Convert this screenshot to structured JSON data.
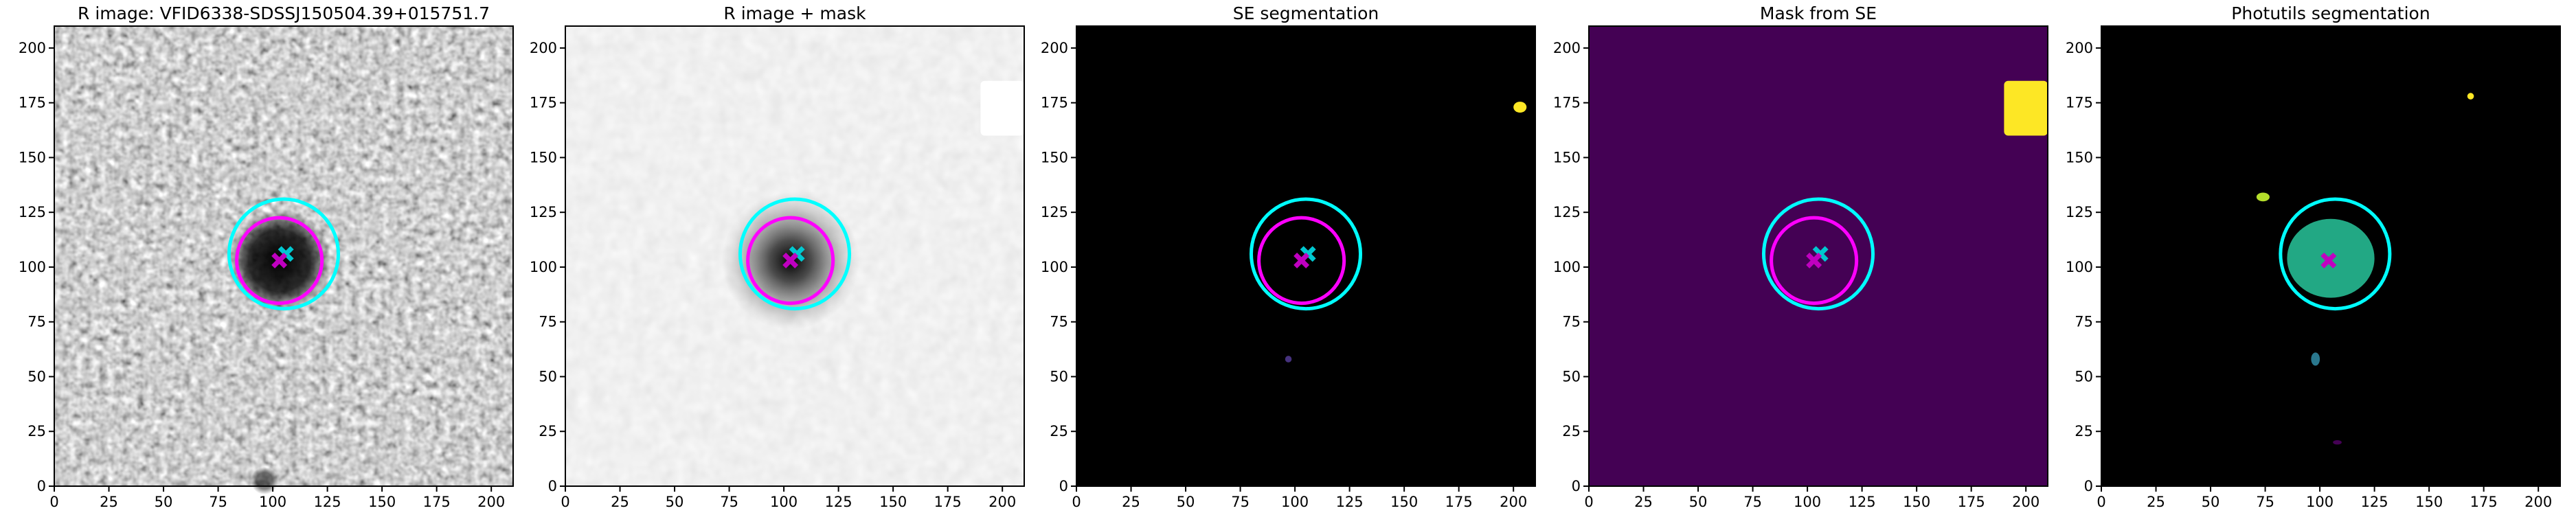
{
  "chart_data": [
    {
      "type": "image",
      "title": "R image: VFID6338-SDSSJ150504.39+015751.7",
      "xlim": [
        0,
        210
      ],
      "ylim": [
        0,
        210
      ],
      "xticks": [
        0,
        25,
        50,
        75,
        100,
        125,
        150,
        175,
        200
      ],
      "yticks": [
        0,
        25,
        50,
        75,
        100,
        125,
        150,
        175,
        200
      ],
      "circles": [
        {
          "x": 105,
          "y": 106,
          "r": 25,
          "color": "#00ffff"
        },
        {
          "x": 103,
          "y": 103,
          "r": 19.5,
          "color": "#ff00ff"
        }
      ],
      "markers": [
        {
          "x": 106,
          "y": 106,
          "color": "#00c8d0"
        },
        {
          "x": 103,
          "y": 103,
          "color": "#c000c0"
        }
      ]
    },
    {
      "type": "image",
      "title": "R image + mask",
      "xlim": [
        0,
        210
      ],
      "ylim": [
        0,
        210
      ],
      "xticks": [
        0,
        25,
        50,
        75,
        100,
        125,
        150,
        175,
        200
      ],
      "yticks": [
        0,
        25,
        50,
        75,
        100,
        125,
        150,
        175,
        200
      ],
      "rects": [
        {
          "x": 190,
          "y": 160,
          "w": 20,
          "h": 25,
          "color": "#ffffff"
        }
      ],
      "circles": [
        {
          "x": 105,
          "y": 106,
          "r": 25,
          "color": "#00ffff"
        },
        {
          "x": 103,
          "y": 103,
          "r": 19.5,
          "color": "#ff00ff"
        }
      ],
      "markers": [
        {
          "x": 106,
          "y": 106,
          "color": "#00c8d0"
        },
        {
          "x": 103,
          "y": 103,
          "color": "#c000c0"
        }
      ]
    },
    {
      "type": "image",
      "title": "SE segmentation",
      "xlim": [
        0,
        210
      ],
      "ylim": [
        0,
        210
      ],
      "xticks": [
        0,
        25,
        50,
        75,
        100,
        125,
        150,
        175,
        200
      ],
      "yticks": [
        0,
        25,
        50,
        75,
        100,
        125,
        150,
        175,
        200
      ],
      "ellipses": [
        {
          "x": 203,
          "y": 173,
          "rx": 3,
          "ry": 2.5,
          "color": "#fde725"
        },
        {
          "x": 97,
          "y": 58,
          "rx": 1.5,
          "ry": 1.5,
          "color": "#46327e"
        }
      ],
      "circles": [
        {
          "x": 105,
          "y": 106,
          "r": 25,
          "color": "#00ffff"
        },
        {
          "x": 103,
          "y": 103,
          "r": 19.5,
          "color": "#ff00ff"
        }
      ],
      "markers": [
        {
          "x": 106,
          "y": 106,
          "color": "#00c8d0"
        },
        {
          "x": 103,
          "y": 103,
          "color": "#c000c0"
        }
      ]
    },
    {
      "type": "image",
      "title": "Mask from SE",
      "xlim": [
        0,
        210
      ],
      "ylim": [
        0,
        210
      ],
      "xticks": [
        0,
        25,
        50,
        75,
        100,
        125,
        150,
        175,
        200
      ],
      "yticks": [
        0,
        25,
        50,
        75,
        100,
        125,
        150,
        175,
        200
      ],
      "rects": [
        {
          "x": 190,
          "y": 160,
          "w": 20,
          "h": 25,
          "color": "#fde725"
        }
      ],
      "circles": [
        {
          "x": 105,
          "y": 106,
          "r": 25,
          "color": "#00ffff"
        },
        {
          "x": 103,
          "y": 103,
          "r": 19.5,
          "color": "#ff00ff"
        }
      ],
      "markers": [
        {
          "x": 106,
          "y": 106,
          "color": "#00c8d0"
        },
        {
          "x": 103,
          "y": 103,
          "color": "#c000c0"
        }
      ]
    },
    {
      "type": "image",
      "title": "Photutils segmentation",
      "xlim": [
        0,
        210
      ],
      "ylim": [
        0,
        210
      ],
      "xticks": [
        0,
        25,
        50,
        75,
        100,
        125,
        150,
        175,
        200
      ],
      "yticks": [
        0,
        25,
        50,
        75,
        100,
        125,
        150,
        175,
        200
      ],
      "ellipses": [
        {
          "x": 105,
          "y": 104,
          "rx": 20,
          "ry": 18,
          "color": "#22a884"
        },
        {
          "x": 74,
          "y": 132,
          "rx": 3,
          "ry": 2,
          "color": "#b5de2b"
        },
        {
          "x": 169,
          "y": 178,
          "rx": 1.5,
          "ry": 1.5,
          "color": "#fde725"
        },
        {
          "x": 98,
          "y": 58,
          "rx": 2,
          "ry": 3,
          "color": "#2a788e"
        },
        {
          "x": 108,
          "y": 20,
          "rx": 2,
          "ry": 1,
          "color": "#440154"
        }
      ],
      "circles": [
        {
          "x": 107,
          "y": 106,
          "r": 25,
          "color": "#00ffff"
        }
      ],
      "markers": [
        {
          "x": 104,
          "y": 103,
          "color": "#c000c0"
        }
      ]
    }
  ]
}
